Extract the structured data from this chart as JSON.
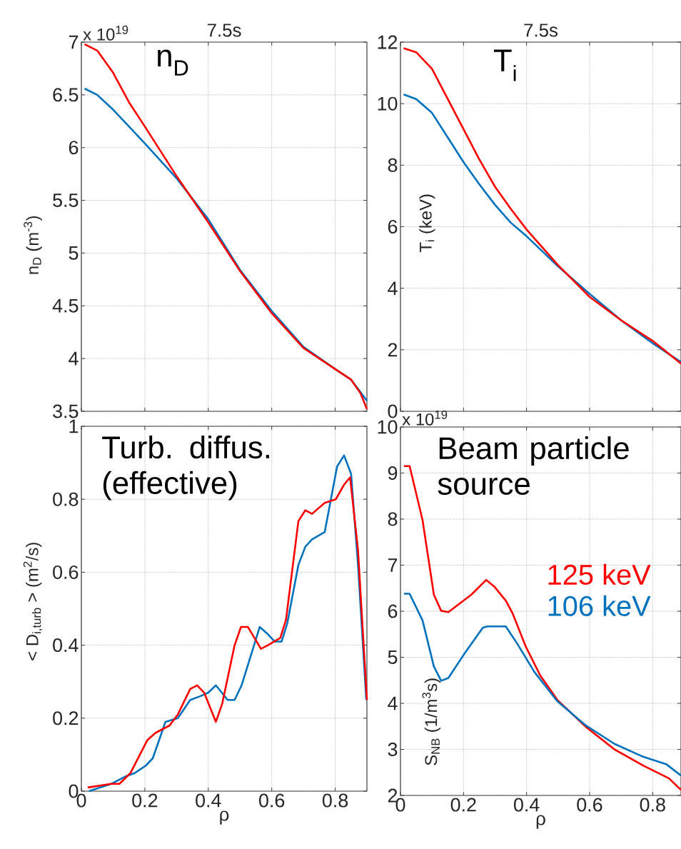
{
  "chart_data": [
    {
      "type": "line",
      "title": "7.5s",
      "ylabel": "n$_{D}$ (m$^{-3}$)",
      "annotations": [
        "n$_{D}$",
        "x 10$^{19}$"
      ],
      "xlim": [
        0,
        0.9
      ],
      "ylim": [
        3.5,
        7
      ],
      "xticks": [
        0,
        0.2,
        0.4,
        0.6,
        0.8
      ],
      "yticks": [
        3.5,
        4,
        4.5,
        5,
        5.5,
        6,
        6.5,
        7
      ],
      "tick_labels": "y",
      "grid": true,
      "x": [
        0.01,
        0.05,
        0.1,
        0.15,
        0.2,
        0.3,
        0.4,
        0.5,
        0.6,
        0.7,
        0.8,
        0.85,
        0.88,
        0.9
      ],
      "series": [
        {
          "color": "#0072bd",
          "values": [
            6.56,
            6.5,
            6.36,
            6.2,
            6.04,
            5.71,
            5.32,
            4.84,
            4.45,
            4.11,
            3.9,
            3.8,
            3.68,
            3.6
          ]
        },
        {
          "color": "#ff0000",
          "values": [
            6.98,
            6.92,
            6.71,
            6.43,
            6.2,
            5.73,
            5.29,
            4.83,
            4.43,
            4.1,
            3.9,
            3.8,
            3.67,
            3.52
          ]
        }
      ]
    },
    {
      "type": "line",
      "title": "7.5s",
      "ylabel": "T$_{i}$ (keV)",
      "annotations": [
        "T$_{i}$"
      ],
      "xlim": [
        0,
        0.89
      ],
      "ylim": [
        0,
        12
      ],
      "xticks": [
        0,
        0.2,
        0.4,
        0.6,
        0.8
      ],
      "yticks": [
        0,
        2,
        4,
        6,
        8,
        10,
        12
      ],
      "tick_labels": "y",
      "grid": true,
      "x": [
        0.01,
        0.05,
        0.1,
        0.15,
        0.2,
        0.25,
        0.3,
        0.35,
        0.4,
        0.5,
        0.6,
        0.7,
        0.8,
        0.89
      ],
      "series": [
        {
          "color": "#0072bd",
          "values": [
            10.3,
            10.15,
            9.7,
            8.9,
            8.1,
            7.38,
            6.71,
            6.13,
            5.69,
            4.71,
            3.82,
            2.96,
            2.21,
            1.6
          ]
        },
        {
          "color": "#ff0000",
          "values": [
            11.8,
            11.67,
            11.13,
            10.15,
            9.17,
            8.19,
            7.3,
            6.58,
            5.91,
            4.75,
            3.72,
            2.96,
            2.29,
            1.55
          ]
        }
      ]
    },
    {
      "type": "line",
      "xlabel": "ρ",
      "ylabel": "< D$_{i,turb}$ > (m$^{2}$/s)",
      "annotations": [
        "Turb. diffus. (effective)"
      ],
      "xlim": [
        0,
        0.9
      ],
      "ylim": [
        0,
        1
      ],
      "xticks": [
        0,
        0.2,
        0.4,
        0.6,
        0.8
      ],
      "yticks": [
        0,
        0.2,
        0.4,
        0.6,
        0.8,
        1
      ],
      "grid": true,
      "series": [
        {
          "color": "#0072bd",
          "x": [
            0.024,
            0.094,
            0.138,
            0.169,
            0.203,
            0.225,
            0.265,
            0.304,
            0.343,
            0.374,
            0.4,
            0.424,
            0.461,
            0.483,
            0.505,
            0.562,
            0.588,
            0.609,
            0.631,
            0.649,
            0.684,
            0.706,
            0.727,
            0.767,
            0.806,
            0.828,
            0.85,
            0.872,
            0.898
          ],
          "values": [
            0.0,
            0.02,
            0.04,
            0.05,
            0.07,
            0.09,
            0.19,
            0.2,
            0.25,
            0.26,
            0.27,
            0.29,
            0.25,
            0.25,
            0.29,
            0.45,
            0.43,
            0.41,
            0.41,
            0.46,
            0.62,
            0.67,
            0.69,
            0.71,
            0.89,
            0.92,
            0.87,
            0.62,
            0.25
          ]
        },
        {
          "color": "#ff0000",
          "x": [
            0.02,
            0.094,
            0.12,
            0.155,
            0.208,
            0.234,
            0.278,
            0.304,
            0.343,
            0.365,
            0.387,
            0.424,
            0.444,
            0.483,
            0.503,
            0.525,
            0.566,
            0.588,
            0.627,
            0.645,
            0.684,
            0.706,
            0.727,
            0.767,
            0.802,
            0.828,
            0.847,
            0.872,
            0.9
          ],
          "values": [
            0.01,
            0.02,
            0.02,
            0.05,
            0.14,
            0.16,
            0.18,
            0.21,
            0.28,
            0.29,
            0.27,
            0.19,
            0.24,
            0.4,
            0.45,
            0.45,
            0.39,
            0.4,
            0.42,
            0.47,
            0.74,
            0.77,
            0.76,
            0.79,
            0.8,
            0.84,
            0.86,
            0.66,
            0.25
          ]
        }
      ]
    },
    {
      "type": "line",
      "xlabel": "ρ",
      "ylabel": "S$_{NB}$ (1/m$^{3}$s)",
      "annotations": [
        "Beam particle source",
        "x 10$^{19}$"
      ],
      "xlim": [
        0,
        0.89
      ],
      "ylim": [
        2,
        10
      ],
      "xticks": [
        0,
        0.2,
        0.4,
        0.6,
        0.8
      ],
      "yticks": [
        2,
        3,
        4,
        5,
        6,
        7,
        8,
        9,
        10
      ],
      "grid": true,
      "series": [
        {
          "name": "125 keV",
          "color": "#ff0000",
          "x": [
            0.011,
            0.029,
            0.07,
            0.106,
            0.129,
            0.152,
            0.225,
            0.272,
            0.297,
            0.334,
            0.356,
            0.397,
            0.443,
            0.497,
            0.588,
            0.679,
            0.77,
            0.852,
            0.89
          ],
          "values": [
            9.15,
            9.15,
            7.98,
            6.36,
            6.01,
            5.98,
            6.36,
            6.68,
            6.54,
            6.23,
            5.95,
            5.24,
            4.61,
            4.08,
            3.49,
            3.0,
            2.65,
            2.37,
            2.12
          ]
        },
        {
          "name": "106 keV",
          "color": "#0072bd",
          "x": [
            0.011,
            0.029,
            0.07,
            0.106,
            0.129,
            0.152,
            0.206,
            0.261,
            0.275,
            0.334,
            0.37,
            0.425,
            0.497,
            0.588,
            0.679,
            0.77,
            0.843,
            0.89
          ],
          "values": [
            6.38,
            6.38,
            5.8,
            4.8,
            4.49,
            4.55,
            5.11,
            5.64,
            5.67,
            5.67,
            5.3,
            4.68,
            4.05,
            3.52,
            3.12,
            2.84,
            2.68,
            2.43
          ]
        }
      ]
    }
  ]
}
